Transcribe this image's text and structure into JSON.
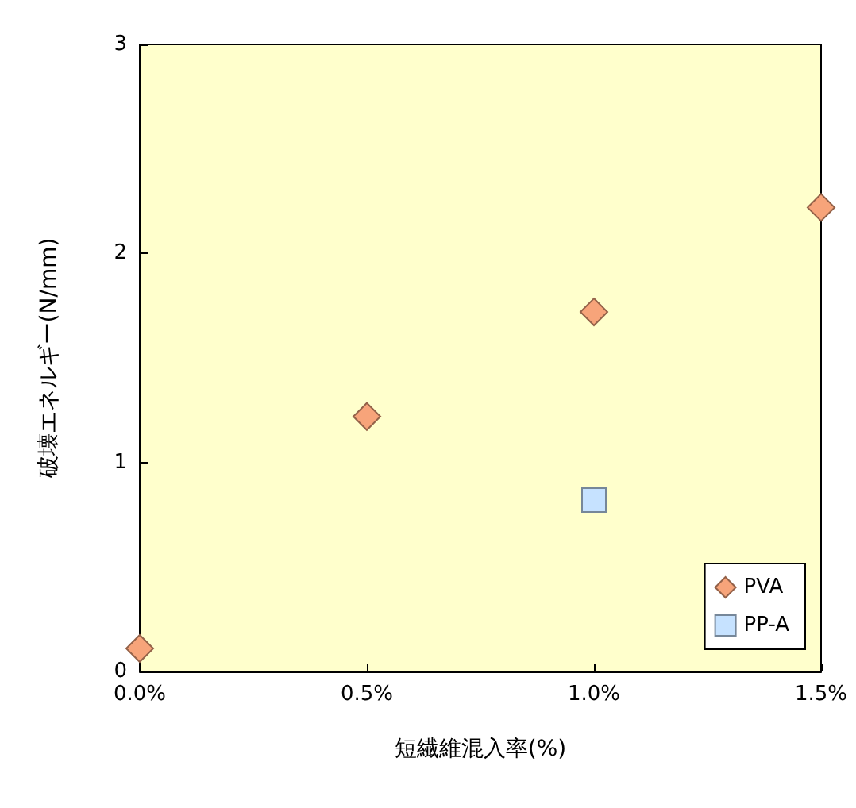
{
  "chart_data": {
    "type": "scatter",
    "xlabel": "短繊維混入率(%)",
    "ylabel": "破壊エネルギー(N/mm)",
    "xlim": [
      0,
      1.5
    ],
    "xticks": [
      {
        "value": 0,
        "label": "0.0%"
      },
      {
        "value": 0.5,
        "label": "0.5%"
      },
      {
        "value": 1.0,
        "label": "1.0%"
      },
      {
        "value": 1.5,
        "label": "1.5%"
      }
    ],
    "ylim": [
      0,
      3
    ],
    "yticks": [
      0,
      1,
      2,
      3
    ],
    "grid": false,
    "legend": "bottom right",
    "series": [
      {
        "name": "PVA",
        "color": "#f7a47a",
        "marker": "diamond",
        "x": [
          0,
          0.5,
          1.0,
          1.5
        ],
        "values": [
          0.11,
          1.22,
          1.72,
          2.22
        ]
      },
      {
        "name": "PP-A",
        "color": "#c6e2ff",
        "marker": "square",
        "x": [
          1.0
        ],
        "values": [
          0.82
        ]
      }
    ]
  }
}
